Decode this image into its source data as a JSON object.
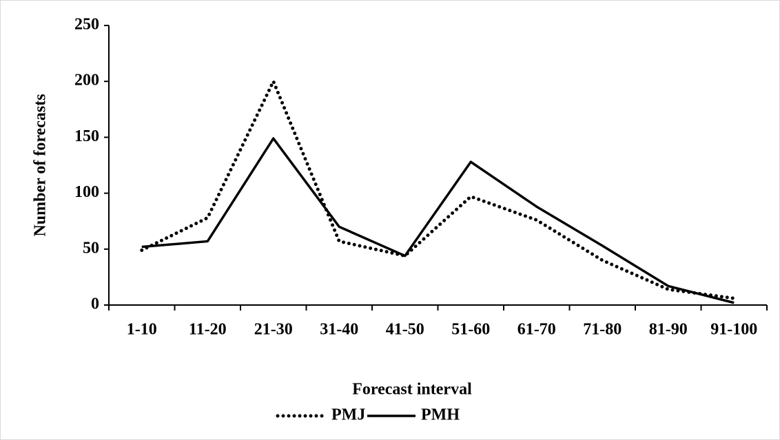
{
  "chart_data": {
    "type": "line",
    "x_label": "Forecast interval",
    "y_label": "Number of forecasts",
    "categories": [
      "1-10",
      "11-20",
      "21-30",
      "31-40",
      "41-50",
      "51-60",
      "61-70",
      "71-80",
      "81-90",
      "91-100"
    ],
    "series": [
      {
        "name": "PMJ",
        "color": "#000000",
        "dash": "dotted",
        "values": [
          49,
          78,
          200,
          57,
          44,
          97,
          76,
          40,
          14,
          6
        ]
      },
      {
        "name": "PMH",
        "color": "#000000",
        "dash": "solid",
        "values": [
          52,
          57,
          149,
          70,
          44,
          128,
          88,
          53,
          17,
          2
        ]
      }
    ],
    "ylim": [
      0,
      250
    ],
    "yticks": [
      0,
      50,
      100,
      150,
      200,
      250
    ],
    "grid": false,
    "legend": "bottom"
  }
}
